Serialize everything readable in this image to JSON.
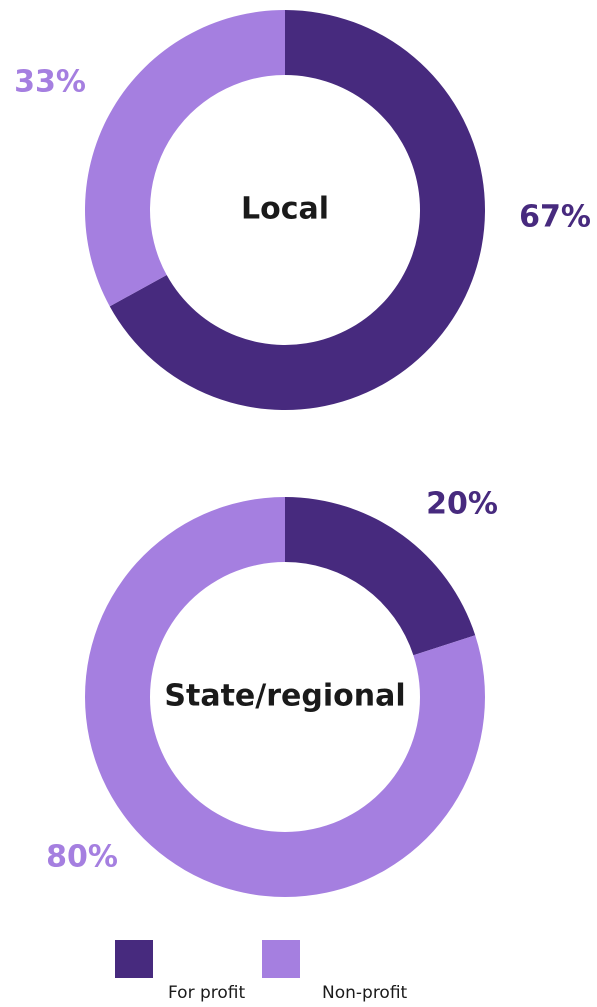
{
  "chart_data": [
    {
      "type": "pie",
      "title": "Local",
      "categories": [
        "For profit",
        "Non-profit"
      ],
      "values": [
        67,
        33
      ],
      "value_labels": [
        "67%",
        "33%"
      ],
      "colors": [
        "#472a7e",
        "#a57fe0"
      ]
    },
    {
      "type": "pie",
      "title": "State/regional",
      "categories": [
        "For profit",
        "Non-profit"
      ],
      "values": [
        20,
        80
      ],
      "value_labels": [
        "20%",
        "80%"
      ],
      "colors": [
        "#472a7e",
        "#a57fe0"
      ]
    }
  ]
}
